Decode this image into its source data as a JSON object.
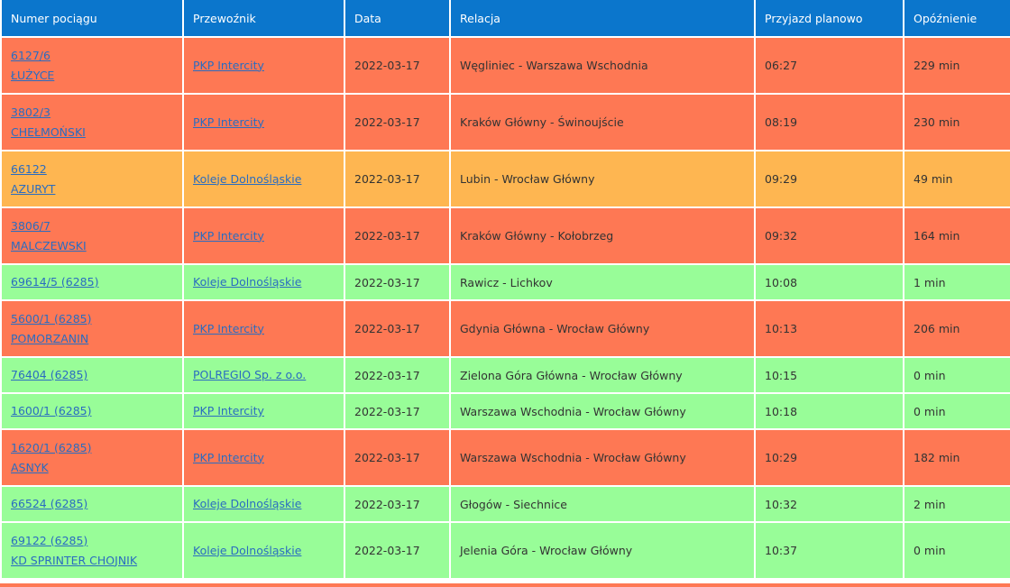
{
  "table": {
    "header": [
      "Numer pociągu",
      "Przewoźnik",
      "Data",
      "Relacja",
      "Przyjazd planowo",
      "Opóźnienie"
    ],
    "rows": [
      {
        "number": "6127/6",
        "name": "ŁUŻYCE",
        "carrier": "PKP Intercity",
        "date": "2022-03-17",
        "relation": "Węgliniec - Warszawa Wschodnia",
        "arrival": "06:27",
        "delay": "229 min",
        "color": "#fe7854"
      },
      {
        "number": "3802/3",
        "name": "CHEŁMOŃSKI",
        "carrier": "PKP Intercity",
        "date": "2022-03-17",
        "relation": "Kraków Główny - Świnoujście",
        "arrival": "08:19",
        "delay": "230 min",
        "color": "#fe7854"
      },
      {
        "number": "66122",
        "name": "AZURYT",
        "carrier": "Koleje Dolnośląskie",
        "date": "2022-03-17",
        "relation": "Lubin - Wrocław Główny",
        "arrival": "09:29",
        "delay": "49 min",
        "color": "#feb651"
      },
      {
        "number": "3806/7",
        "name": "MALCZEWSKI",
        "carrier": "PKP Intercity",
        "date": "2022-03-17",
        "relation": "Kraków Główny - Kołobrzeg",
        "arrival": "09:32",
        "delay": "164 min",
        "color": "#fe7854"
      },
      {
        "number": "69614/5 (6285)",
        "carrier": "Koleje Dolnośląskie",
        "date": "2022-03-17",
        "relation": "Rawicz - Lichkov",
        "arrival": "10:08",
        "delay": "1 min",
        "color": "#98fd98"
      },
      {
        "number": "5600/1 (6285)",
        "name": "POMORZANIN",
        "carrier": "PKP Intercity",
        "date": "2022-03-17",
        "relation": "Gdynia Główna - Wrocław Główny",
        "arrival": "10:13",
        "delay": "206 min",
        "color": "#fe7854"
      },
      {
        "number": "76404 (6285)",
        "carrier": "POLREGIO Sp. z o.o.",
        "date": "2022-03-17",
        "relation": "Zielona Góra Główna - Wrocław Główny",
        "arrival": "10:15",
        "delay": "0 min",
        "color": "#98fd98"
      },
      {
        "number": "1600/1 (6285)",
        "carrier": "PKP Intercity",
        "date": "2022-03-17",
        "relation": "Warszawa Wschodnia - Wrocław Główny",
        "arrival": "10:18",
        "delay": "0 min",
        "color": "#98fd98"
      },
      {
        "number": "1620/1 (6285)",
        "name": "ASNYK",
        "carrier": "PKP Intercity",
        "date": "2022-03-17",
        "relation": "Warszawa Wschodnia - Wrocław Główny",
        "arrival": "10:29",
        "delay": "182 min",
        "color": "#fe7854"
      },
      {
        "number": "66524 (6285)",
        "carrier": "Koleje Dolnośląskie",
        "date": "2022-03-17",
        "relation": "Głogów - Siechnice",
        "arrival": "10:32",
        "delay": "2 min",
        "color": "#98fd98"
      },
      {
        "number": "69122 (6285)",
        "name": "KD SPRINTER CHOJNIK",
        "carrier": "Koleje Dolnośląskie",
        "date": "2022-03-17",
        "relation": "Jelenia Góra - Wrocław Główny",
        "arrival": "10:37",
        "delay": "0 min",
        "color": "#98fd98"
      }
    ]
  }
}
